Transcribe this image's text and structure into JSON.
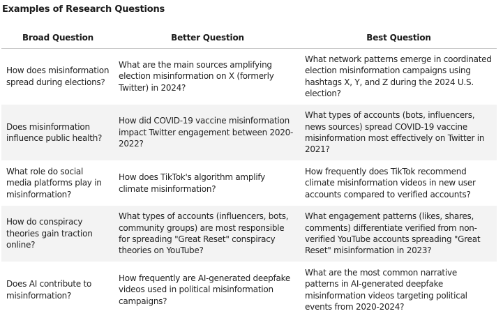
{
  "title": "Examples of Research Questions",
  "columns": [
    "Broad Question",
    "Better Question",
    "Best Question"
  ],
  "rows": [
    {
      "broad": "How does misinformation spread during elections?",
      "better": "What are the main sources amplifying election misinformation on X (formerly Twitter) in 2024?",
      "best": "What network patterns emerge in coordinated election misinformation campaigns using hashtags X, Y, and Z during the 2024 U.S. election?"
    },
    {
      "broad": "Does misinformation influence public health?",
      "better": "How did COVID-19 vaccine misinformation impact Twitter engagement between 2020-2022?",
      "best": "What types of accounts (bots, influencers, news sources) spread COVID-19 vaccine misinformation most effectively on Twitter in 2021?"
    },
    {
      "broad": "What role do social media platforms play in misinformation?",
      "better": "How does TikTok's algorithm amplify climate misinformation?",
      "best": "How frequently does TikTok recommend climate misinformation videos in new user accounts compared to verified accounts?"
    },
    {
      "broad": "How do conspiracy theories gain traction online?",
      "better": "What types of accounts (influencers, bots, community groups) are most responsible for spreading \"Great Reset\" conspiracy theories on YouTube?",
      "best": "What engagement patterns (likes, shares, comments) differentiate verified from non-verified YouTube accounts spreading \"Great Reset\" misinformation in 2023?"
    },
    {
      "broad": "Does AI contribute to misinformation?",
      "better": "How frequently are AI-generated deepfake videos used in political misinformation campaigns?",
      "best": "What are the most common narrative patterns in AI-generated deepfake misinformation videos targeting political events from 2020-2024?"
    }
  ]
}
